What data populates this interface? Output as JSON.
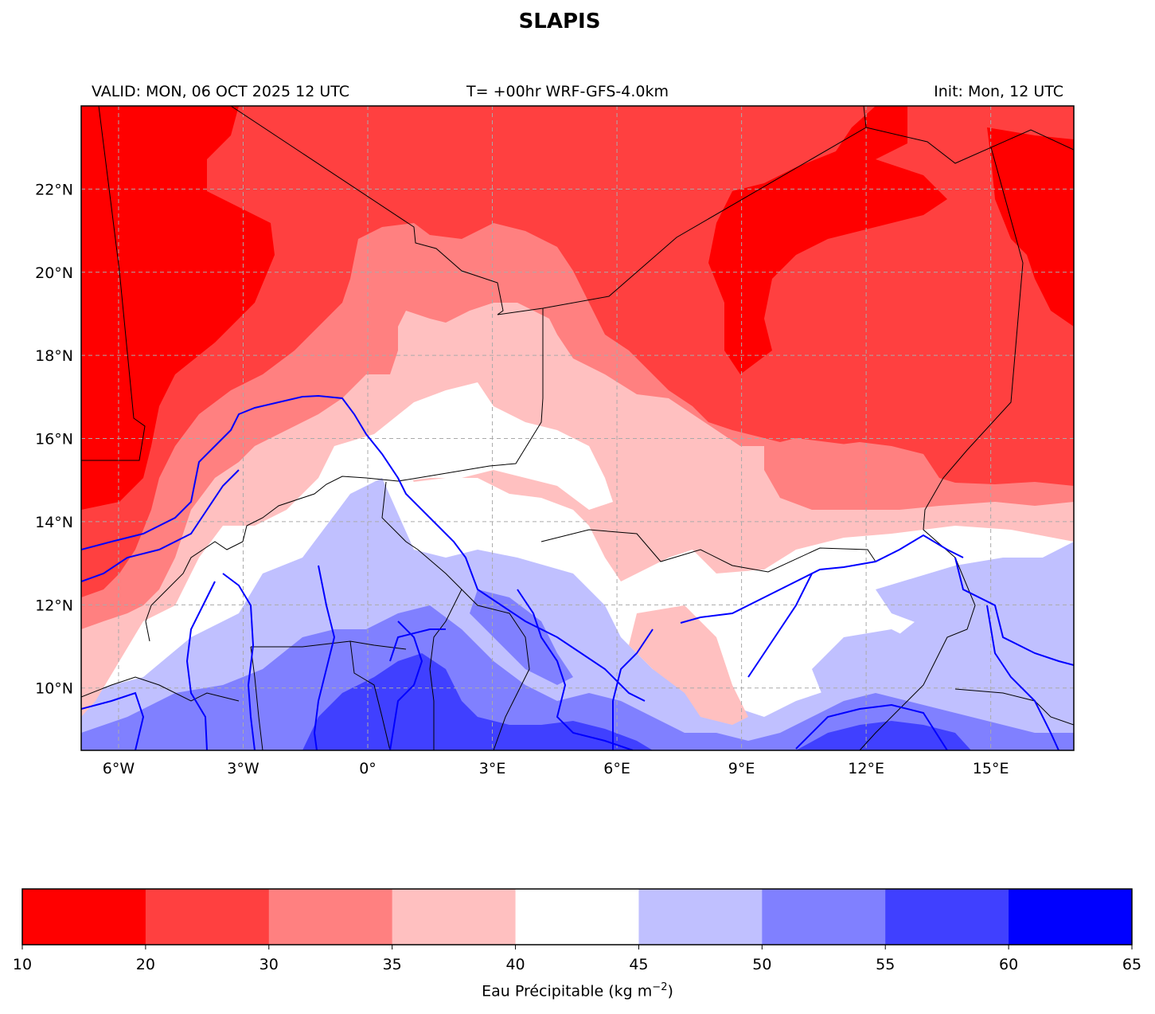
{
  "title": "SLAPIS",
  "subtitle": {
    "valid": "VALID: MON, 06 OCT 2025 12 UTC",
    "run": "T= +00hr WRF-GFS-4.0km",
    "init": "Init: Mon, 12 UTC"
  },
  "map": {
    "lon_range": [
      -6.9,
      17
    ],
    "lat_range": [
      8.5,
      24
    ],
    "lon_ticks": [
      {
        "value": -6,
        "label": "6°W"
      },
      {
        "value": -3,
        "label": "3°W"
      },
      {
        "value": 0,
        "label": "0°"
      },
      {
        "value": 3,
        "label": "3°E"
      },
      {
        "value": 6,
        "label": "6°E"
      },
      {
        "value": 9,
        "label": "9°E"
      },
      {
        "value": 12,
        "label": "12°E"
      },
      {
        "value": 15,
        "label": "15°E"
      }
    ],
    "lat_ticks": [
      {
        "value": 10,
        "label": "10°N"
      },
      {
        "value": 12,
        "label": "12°N"
      },
      {
        "value": 14,
        "label": "14°N"
      },
      {
        "value": 16,
        "label": "16°N"
      },
      {
        "value": 18,
        "label": "18°N"
      },
      {
        "value": 20,
        "label": "20°N"
      },
      {
        "value": 22,
        "label": "22°N"
      }
    ],
    "gridlines": true,
    "field_colors": {
      "very_dry": "#ff0000",
      "dry": "#ff4040",
      "moderate_dry": "#ff8080",
      "light_dry": "#ffc0c0",
      "neutral": "#ffffff",
      "light_wet": "#c0c0ff",
      "moderate_wet": "#8080ff",
      "wet": "#4040ff",
      "very_wet": "#0000ff"
    },
    "river_color": "#0000ff",
    "border_color": "#000000"
  },
  "colorbar": {
    "bounds": [
      10,
      20,
      30,
      35,
      40,
      45,
      50,
      55,
      60,
      65
    ],
    "tick_labels": [
      "10",
      "20",
      "30",
      "35",
      "40",
      "45",
      "50",
      "55",
      "60",
      "65"
    ],
    "colors": [
      "#ff0000",
      "#ff4040",
      "#ff8080",
      "#ffc0c0",
      "#ffffff",
      "#c0c0ff",
      "#8080ff",
      "#4040ff",
      "#0000ff"
    ],
    "label": "Eau Précipitable (kg m",
    "label_exponent": "−2",
    "label_suffix": ")"
  }
}
